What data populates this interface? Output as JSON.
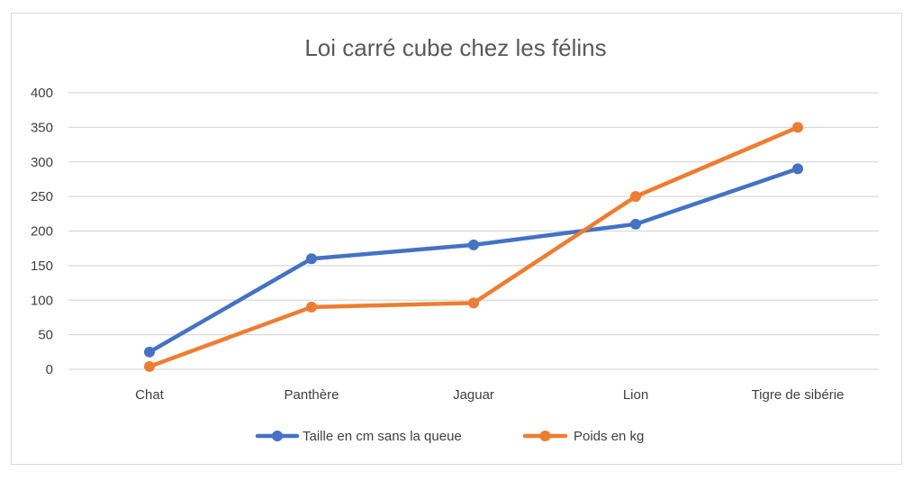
{
  "chart_data": {
    "type": "line",
    "title": "Loi carré cube chez les félins",
    "categories": [
      "Chat",
      "Panthère",
      "Jaguar",
      "Lion",
      "Tigre de sibérie"
    ],
    "ylim": [
      0,
      400
    ],
    "yticks": [
      0,
      50,
      100,
      150,
      200,
      250,
      300,
      350,
      400
    ],
    "grid": true,
    "legend_position": "bottom",
    "series": [
      {
        "name": "Taille en cm sans la queue",
        "color": "#4472C4",
        "values": [
          25,
          160,
          180,
          210,
          290
        ]
      },
      {
        "name": "Poids en kg",
        "color": "#ED7D31",
        "values": [
          4,
          90,
          96,
          250,
          350
        ]
      }
    ]
  }
}
